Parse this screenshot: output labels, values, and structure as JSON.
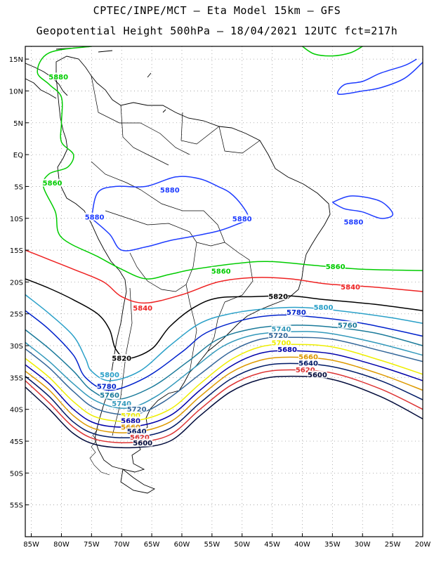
{
  "title_line1": "CPTEC/INPE/MCT –  Eta Model 15km – GFS",
  "title_line2": "Geopotential Height 500hPa – 18/04/2021 12UTC fct=217h",
  "lat_labels": [
    "15N",
    "10N",
    "5N",
    "EQ",
    "5S",
    "10S",
    "15S",
    "20S",
    "25S",
    "30S",
    "35S",
    "40S",
    "45S",
    "50S",
    "55S"
  ],
  "lon_labels": [
    "85W",
    "80W",
    "75W",
    "70W",
    "65W",
    "60W",
    "55W",
    "50W",
    "45W",
    "40W",
    "35W",
    "30W",
    "25W",
    "20W"
  ],
  "colors": {
    "5880": "#1e3cff",
    "5860": "#00cc00",
    "5840": "#ee2222",
    "5820": "#000000",
    "5800": "#2aa0c8",
    "5780": "#0022cc",
    "5760": "#1a7a9a",
    "5740": "#3399bb",
    "5720": "#336699",
    "5700": "#eeee00",
    "5680": "#0000aa",
    "5660": "#dd9900",
    "5640": "#001a66",
    "5620": "#dd3333",
    "5600": "#000a3a"
  },
  "contour_labels": [
    {
      "text": "5880",
      "lon": -80.5,
      "lat": 12.0,
      "level": "5880",
      "c": "5860"
    },
    {
      "text": "5860",
      "lon": -81.5,
      "lat": -4.7,
      "level": "5860"
    },
    {
      "text": "5880",
      "lon": -62.0,
      "lat": -5.8,
      "level": "5880"
    },
    {
      "text": "5880",
      "lon": -74.5,
      "lat": -10.0,
      "level": "5880"
    },
    {
      "text": "5880",
      "lon": -50.0,
      "lat": -10.3,
      "level": "5880"
    },
    {
      "text": "5880",
      "lon": -31.5,
      "lat": -10.8,
      "level": "5880"
    },
    {
      "text": "5860",
      "lon": -53.5,
      "lat": -18.5,
      "level": "5860"
    },
    {
      "text": "5860",
      "lon": -34.5,
      "lat": -17.8,
      "level": "5860"
    },
    {
      "text": "5840",
      "lon": -32.0,
      "lat": -21.0,
      "level": "5840"
    },
    {
      "text": "5840",
      "lon": -66.5,
      "lat": -24.3,
      "level": "5840"
    },
    {
      "text": "5820",
      "lon": -44.0,
      "lat": -22.5,
      "level": "5820"
    },
    {
      "text": "5820",
      "lon": -70.0,
      "lat": -32.2,
      "level": "5820"
    },
    {
      "text": "5800",
      "lon": -36.5,
      "lat": -24.2,
      "level": "5800"
    },
    {
      "text": "5780",
      "lon": -41.0,
      "lat": -25.0,
      "level": "5780"
    },
    {
      "text": "5760",
      "lon": -32.5,
      "lat": -27.0,
      "level": "5760"
    },
    {
      "text": "5740",
      "lon": -43.5,
      "lat": -27.6,
      "level": "5740"
    },
    {
      "text": "5720",
      "lon": -44.0,
      "lat": -28.6,
      "level": "5720"
    },
    {
      "text": "5700",
      "lon": -43.5,
      "lat": -29.8,
      "level": "5700"
    },
    {
      "text": "5680",
      "lon": -42.5,
      "lat": -30.8,
      "level": "5680"
    },
    {
      "text": "5660",
      "lon": -39.0,
      "lat": -32.0,
      "level": "5660"
    },
    {
      "text": "5640",
      "lon": -39.0,
      "lat": -33.0,
      "level": "5640"
    },
    {
      "text": "5620",
      "lon": -39.5,
      "lat": -34.0,
      "level": "5620"
    },
    {
      "text": "5600",
      "lon": -37.5,
      "lat": -34.8,
      "level": "5600"
    },
    {
      "text": "5800",
      "lon": -72.0,
      "lat": -34.8,
      "level": "5800"
    },
    {
      "text": "5780",
      "lon": -72.5,
      "lat": -36.6,
      "level": "5780"
    },
    {
      "text": "5760",
      "lon": -72.0,
      "lat": -38.0,
      "level": "5760"
    },
    {
      "text": "5740",
      "lon": -70.0,
      "lat": -39.3,
      "level": "5740"
    },
    {
      "text": "5720",
      "lon": -67.5,
      "lat": -40.2,
      "level": "5720"
    },
    {
      "text": "5700",
      "lon": -68.5,
      "lat": -41.2,
      "level": "5700"
    },
    {
      "text": "5680",
      "lon": -68.5,
      "lat": -42.0,
      "level": "5680"
    },
    {
      "text": "5660",
      "lon": -68.5,
      "lat": -43.0,
      "level": "5660"
    },
    {
      "text": "5640",
      "lon": -67.5,
      "lat": -43.7,
      "level": "5640"
    },
    {
      "text": "5620",
      "lon": -67.0,
      "lat": -44.6,
      "level": "5620"
    },
    {
      "text": "5600",
      "lon": -66.5,
      "lat": -45.5,
      "level": "5600"
    }
  ],
  "contours": [
    {
      "level": "5860",
      "pts": [
        [
          -75,
          17
        ],
        [
          -82,
          16
        ],
        [
          -84,
          13
        ],
        [
          -82,
          11
        ],
        [
          -80,
          9
        ],
        [
          -80,
          5
        ],
        [
          -80,
          2
        ],
        [
          -78,
          0
        ],
        [
          -79,
          -2
        ],
        [
          -82,
          -3
        ],
        [
          -83,
          -5
        ],
        [
          -81,
          -9
        ],
        [
          -80,
          -13
        ],
        [
          -74,
          -16
        ],
        [
          -70,
          -18
        ],
        [
          -66,
          -19.5
        ],
        [
          -62,
          -18.8
        ],
        [
          -58,
          -18
        ],
        [
          -50,
          -17
        ],
        [
          -45,
          -16.8
        ],
        [
          -38,
          -17.4
        ],
        [
          -30,
          -18
        ],
        [
          -20,
          -18.2
        ]
      ]
    },
    {
      "level": "5860",
      "pts": [
        [
          -40,
          17
        ],
        [
          -38,
          15.8
        ],
        [
          -35,
          15.5
        ],
        [
          -32,
          16
        ],
        [
          -30,
          17
        ]
      ]
    },
    {
      "level": "5880",
      "pts": [
        [
          -20,
          14.5
        ],
        [
          -23,
          12
        ],
        [
          -27,
          10.5
        ],
        [
          -30,
          10
        ],
        [
          -34,
          9.5
        ],
        [
          -33,
          11
        ],
        [
          -30,
          11.5
        ],
        [
          -27,
          12.8
        ],
        [
          -23,
          14
        ],
        [
          -21,
          15
        ]
      ]
    },
    {
      "level": "5880",
      "pts": [
        [
          -75,
          -10
        ],
        [
          -74,
          -6
        ],
        [
          -71,
          -5
        ],
        [
          -66,
          -5
        ],
        [
          -61,
          -3.5
        ],
        [
          -57,
          -3.8
        ],
        [
          -54,
          -5
        ],
        [
          -52,
          -6
        ],
        [
          -50,
          -8
        ],
        [
          -49,
          -10
        ],
        [
          -51,
          -11
        ],
        [
          -54,
          -12
        ],
        [
          -58,
          -12.8
        ],
        [
          -62,
          -13.5
        ],
        [
          -66,
          -14.5
        ],
        [
          -70,
          -15
        ],
        [
          -72,
          -12.5
        ],
        [
          -75,
          -10
        ]
      ]
    },
    {
      "level": "5880",
      "pts": [
        [
          -35,
          -7.5
        ],
        [
          -32,
          -6.5
        ],
        [
          -28,
          -7
        ],
        [
          -26,
          -8
        ],
        [
          -25,
          -9.5
        ],
        [
          -27,
          -10
        ],
        [
          -30,
          -9
        ],
        [
          -33,
          -8.5
        ],
        [
          -35,
          -7.5
        ]
      ]
    },
    {
      "level": "5840",
      "pts": [
        [
          -86,
          -15
        ],
        [
          -82,
          -16.5
        ],
        [
          -78,
          -18
        ],
        [
          -73,
          -20
        ],
        [
          -70,
          -22.3
        ],
        [
          -66,
          -23.3
        ],
        [
          -60,
          -22
        ],
        [
          -54,
          -20
        ],
        [
          -48,
          -19.3
        ],
        [
          -42,
          -19.5
        ],
        [
          -36,
          -20.3
        ],
        [
          -28,
          -20.8
        ],
        [
          -20,
          -21.5
        ]
      ]
    },
    {
      "level": "5820",
      "pts": [
        [
          -86,
          -19.5
        ],
        [
          -82,
          -21
        ],
        [
          -78,
          -22.8
        ],
        [
          -74,
          -25
        ],
        [
          -72,
          -27.5
        ],
        [
          -71,
          -30.5
        ],
        [
          -69,
          -32
        ],
        [
          -65,
          -30.5
        ],
        [
          -62,
          -27
        ],
        [
          -58,
          -24
        ],
        [
          -54,
          -22.5
        ],
        [
          -48,
          -22.3
        ],
        [
          -42,
          -22.2
        ],
        [
          -36,
          -22.8
        ],
        [
          -28,
          -23.5
        ],
        [
          -20,
          -24.5
        ]
      ]
    },
    {
      "level": "5800",
      "pts": [
        [
          -86,
          -22
        ],
        [
          -82,
          -25
        ],
        [
          -78,
          -28.5
        ],
        [
          -76,
          -32
        ],
        [
          -75,
          -34
        ],
        [
          -72,
          -35.5
        ],
        [
          -67,
          -34
        ],
        [
          -62,
          -30
        ],
        [
          -57,
          -26.5
        ],
        [
          -52,
          -25
        ],
        [
          -46,
          -24.2
        ],
        [
          -40,
          -24
        ],
        [
          -34,
          -24.5
        ],
        [
          -26,
          -25.5
        ],
        [
          -20,
          -26.5
        ]
      ]
    },
    {
      "level": "5780",
      "pts": [
        [
          -86,
          -24.5
        ],
        [
          -82,
          -27.5
        ],
        [
          -78,
          -31.5
        ],
        [
          -76,
          -35
        ],
        [
          -72,
          -37
        ],
        [
          -66,
          -35
        ],
        [
          -60,
          -31
        ],
        [
          -56,
          -28
        ],
        [
          -50,
          -26
        ],
        [
          -44,
          -25.2
        ],
        [
          -38,
          -25.5
        ],
        [
          -30,
          -26.5
        ],
        [
          -20,
          -28.5
        ]
      ]
    },
    {
      "level": "5760",
      "pts": [
        [
          -86,
          -27.5
        ],
        [
          -82,
          -30.5
        ],
        [
          -78,
          -34
        ],
        [
          -75,
          -37
        ],
        [
          -71,
          -38.5
        ],
        [
          -65,
          -36.5
        ],
        [
          -59,
          -32.5
        ],
        [
          -54,
          -29
        ],
        [
          -48,
          -27.3
        ],
        [
          -42,
          -26.8
        ],
        [
          -36,
          -27
        ],
        [
          -28,
          -28
        ],
        [
          -20,
          -30
        ]
      ]
    },
    {
      "level": "5740",
      "pts": [
        [
          -86,
          -29.5
        ],
        [
          -82,
          -32.5
        ],
        [
          -78,
          -36
        ],
        [
          -74,
          -38.8
        ],
        [
          -69,
          -39.8
        ],
        [
          -64,
          -37.8
        ],
        [
          -58,
          -33.5
        ],
        [
          -53,
          -30
        ],
        [
          -48,
          -28.3
        ],
        [
          -42,
          -27.8
        ],
        [
          -36,
          -28
        ],
        [
          -28,
          -29.5
        ],
        [
          -20,
          -31.5
        ]
      ]
    },
    {
      "level": "5720",
      "pts": [
        [
          -86,
          -30.5
        ],
        [
          -82,
          -33.5
        ],
        [
          -78,
          -37.2
        ],
        [
          -74,
          -40
        ],
        [
          -68,
          -40.8
        ],
        [
          -63,
          -38.8
        ],
        [
          -57,
          -34.5
        ],
        [
          -52,
          -31
        ],
        [
          -47,
          -29
        ],
        [
          -42,
          -28.7
        ],
        [
          -35,
          -29
        ],
        [
          -27,
          -30.8
        ],
        [
          -20,
          -32.5
        ]
      ]
    },
    {
      "level": "5700",
      "pts": [
        [
          -86,
          -32
        ],
        [
          -82,
          -35
        ],
        [
          -78,
          -38.8
        ],
        [
          -74,
          -41.3
        ],
        [
          -68,
          -41.8
        ],
        [
          -62,
          -40
        ],
        [
          -57,
          -36
        ],
        [
          -52,
          -32.3
        ],
        [
          -47,
          -30.2
        ],
        [
          -42,
          -29.8
        ],
        [
          -35,
          -30.2
        ],
        [
          -27,
          -32.3
        ],
        [
          -20,
          -34.5
        ]
      ]
    },
    {
      "level": "5680",
      "pts": [
        [
          -86,
          -33
        ],
        [
          -82,
          -36
        ],
        [
          -78,
          -40
        ],
        [
          -74,
          -42.3
        ],
        [
          -68,
          -42.7
        ],
        [
          -62,
          -41
        ],
        [
          -57,
          -37
        ],
        [
          -52,
          -33.3
        ],
        [
          -47,
          -31.2
        ],
        [
          -42,
          -30.8
        ],
        [
          -35,
          -31.3
        ],
        [
          -27,
          -33.3
        ],
        [
          -20,
          -35.5
        ]
      ]
    },
    {
      "level": "5660",
      "pts": [
        [
          -86,
          -34
        ],
        [
          -82,
          -37
        ],
        [
          -78,
          -41
        ],
        [
          -74,
          -43.2
        ],
        [
          -68,
          -43.6
        ],
        [
          -62,
          -42
        ],
        [
          -57,
          -38
        ],
        [
          -52,
          -34.3
        ],
        [
          -47,
          -32.3
        ],
        [
          -42,
          -31.8
        ],
        [
          -35,
          -32.3
        ],
        [
          -27,
          -34.5
        ],
        [
          -20,
          -37
        ]
      ]
    },
    {
      "level": "5640",
      "pts": [
        [
          -86,
          -34.8
        ],
        [
          -82,
          -38
        ],
        [
          -78,
          -42
        ],
        [
          -74,
          -44
        ],
        [
          -68,
          -44.4
        ],
        [
          -62,
          -43
        ],
        [
          -57,
          -39
        ],
        [
          -52,
          -35.3
        ],
        [
          -47,
          -33.3
        ],
        [
          -42,
          -32.8
        ],
        [
          -35,
          -33.3
        ],
        [
          -27,
          -35.5
        ],
        [
          -20,
          -38.5
        ]
      ]
    },
    {
      "level": "5620",
      "pts": [
        [
          -86,
          -35.5
        ],
        [
          -82,
          -39
        ],
        [
          -78,
          -42.8
        ],
        [
          -74,
          -44.8
        ],
        [
          -68,
          -45.2
        ],
        [
          -62,
          -44
        ],
        [
          -57,
          -40
        ],
        [
          -52,
          -36.3
        ],
        [
          -47,
          -34.3
        ],
        [
          -42,
          -33.8
        ],
        [
          -35,
          -34.3
        ],
        [
          -27,
          -36.8
        ],
        [
          -20,
          -40
        ]
      ]
    },
    {
      "level": "5600",
      "pts": [
        [
          -86,
          -36.5
        ],
        [
          -82,
          -40
        ],
        [
          -78,
          -43.8
        ],
        [
          -74,
          -45.6
        ],
        [
          -68,
          -46
        ],
        [
          -62,
          -45
        ],
        [
          -57,
          -41
        ],
        [
          -52,
          -37.3
        ],
        [
          -47,
          -35.3
        ],
        [
          -42,
          -34.8
        ],
        [
          -35,
          -35.3
        ],
        [
          -27,
          -38
        ],
        [
          -20,
          -41.5
        ]
      ]
    }
  ]
}
